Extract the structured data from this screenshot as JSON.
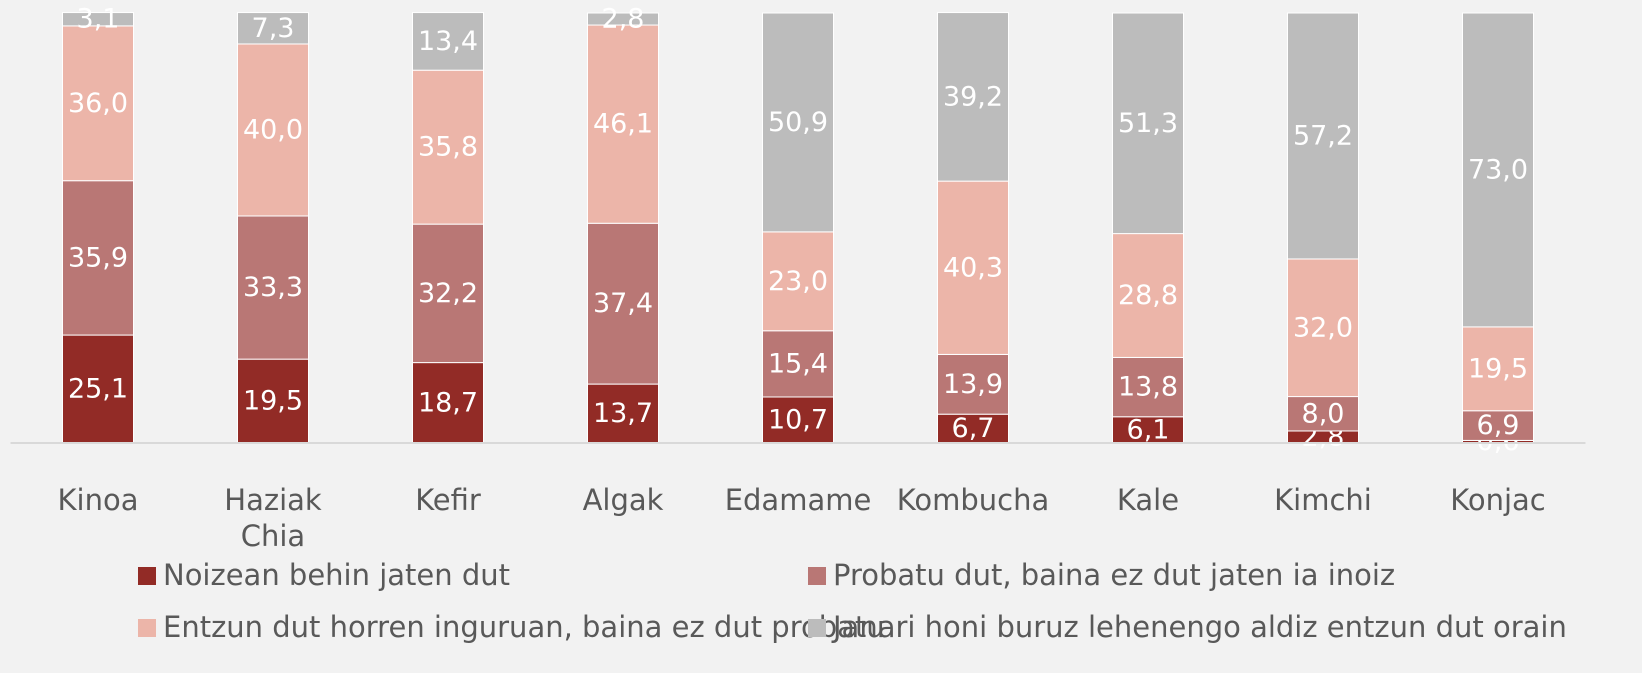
{
  "chart_data": {
    "type": "bar",
    "stacked": true,
    "categories": [
      "Kinoa",
      "Haziak Chia",
      "Kefir",
      "Algak",
      "Edamame",
      "Kombucha",
      "Kale",
      "Kimchi",
      "Konjac"
    ],
    "ylim": [
      0,
      100
    ],
    "series": [
      {
        "name": "Noizean behin jaten dut",
        "color": "#922b26",
        "values": [
          25.1,
          19.5,
          18.7,
          13.7,
          10.7,
          6.7,
          6.1,
          2.8,
          0.6
        ],
        "value_labels": [
          "25,1",
          "19,5",
          "18,7",
          "13,7",
          "10,7",
          "6,7",
          "6,1",
          "2,8",
          "0,6"
        ]
      },
      {
        "name": "Probatu dut, baina ez dut jaten ia inoiz",
        "color": "#b97775",
        "values": [
          35.9,
          33.3,
          32.2,
          37.4,
          15.4,
          13.9,
          13.8,
          8.0,
          6.9
        ],
        "value_labels": [
          "35,9",
          "33,3",
          "32,2",
          "37,4",
          "15,4",
          "13,9",
          "13,8",
          "8,0",
          "6,9"
        ]
      },
      {
        "name": "Entzun dut horren inguruan, baina ez dut probatu",
        "color": "#ecb5a9",
        "values": [
          36.0,
          40.0,
          35.8,
          46.1,
          23.0,
          40.3,
          28.8,
          32.0,
          19.5
        ],
        "value_labels": [
          "36,0",
          "40,0",
          "35,8",
          "46,1",
          "23,0",
          "40,3",
          "28,8",
          "32,0",
          "19,5"
        ]
      },
      {
        "name": "Janari honi buruz lehenengo aldiz entzun dut orain",
        "color": "#bcbcbc",
        "values": [
          3.1,
          7.3,
          13.4,
          2.8,
          50.9,
          39.2,
          51.3,
          57.2,
          73.0
        ],
        "value_labels": [
          "3,1",
          "7,3",
          "13,4",
          "2,8",
          "50,9",
          "39,2",
          "51,3",
          "57,2",
          "73,0"
        ]
      }
    ]
  }
}
